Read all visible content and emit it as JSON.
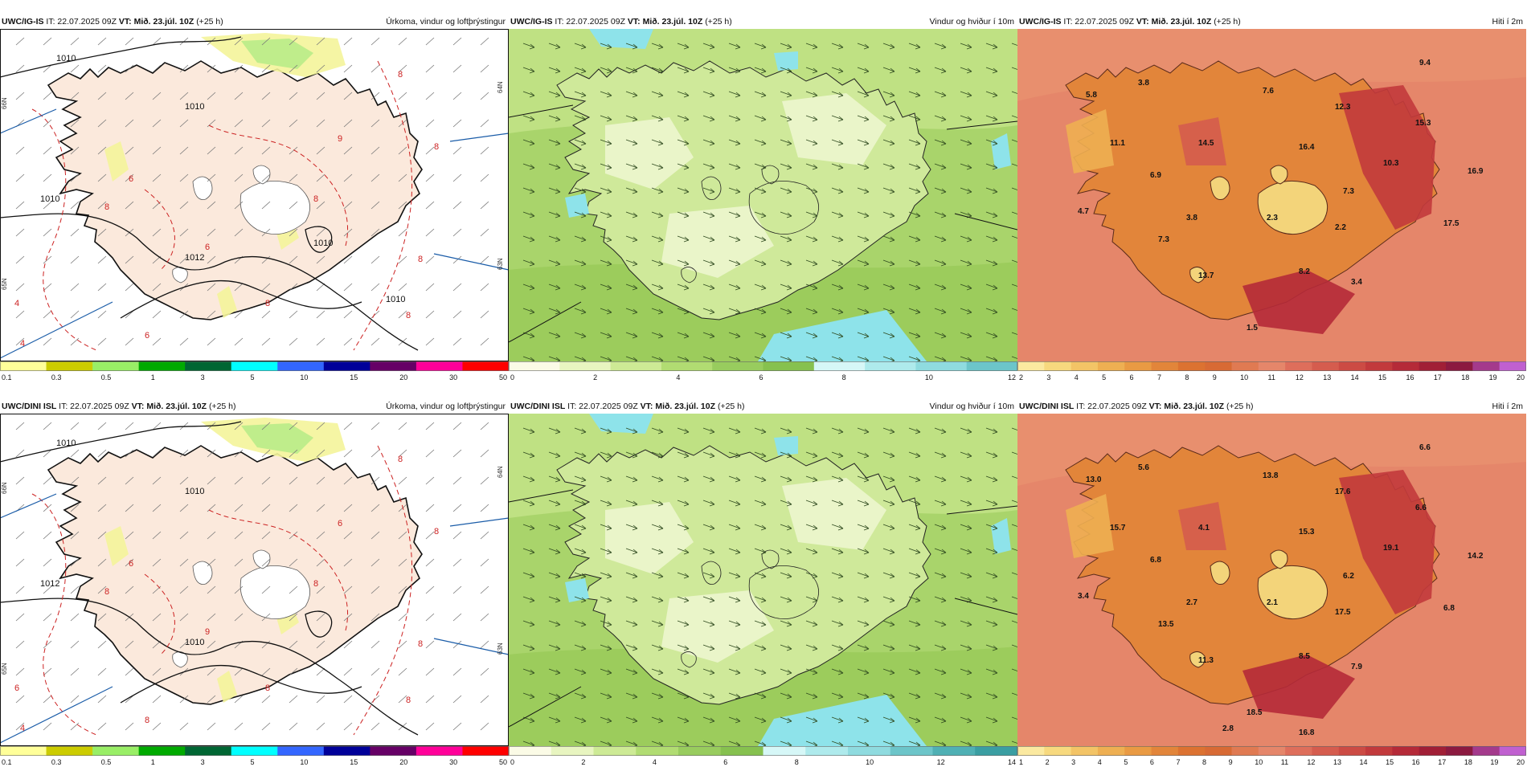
{
  "panels": [
    {
      "source": "UWC/IG-IS",
      "it": " IT: 22.07.2025 09Z ",
      "vt_label": "VT:",
      "vt_value": " Mið. 23.júl. 10Z ",
      "lead": "(+25 h)",
      "title": "Úrkoma, vindur og loftþrýstingur",
      "type": "precip",
      "colorbar": {
        "colors": [
          "#ffff99",
          "#cccc00",
          "#99ee66",
          "#00aa00",
          "#006633",
          "#00ffff",
          "#3366ff",
          "#000099",
          "#660066",
          "#ff0099",
          "#ff0000"
        ],
        "labels": [
          "0.1",
          "0.3",
          "0.5",
          "1",
          "3",
          "5",
          "10",
          "15",
          "20",
          "30",
          "50"
        ]
      },
      "isobar_labels": [
        "1010",
        "1010",
        "1010",
        "1012",
        "1010",
        "1010"
      ],
      "contour_labels": [
        "8",
        "8",
        "8",
        "6",
        "8",
        "6",
        "4",
        "8",
        "6",
        "8",
        "8",
        "4",
        "9"
      ],
      "lat_labels": [
        "66N",
        "65N",
        "64N",
        "63N"
      ]
    },
    {
      "source": "UWC/IG-IS",
      "it": " IT: 22.07.2025 09Z ",
      "vt_label": "VT:",
      "vt_value": " Mið. 23.júl. 10Z ",
      "lead": "(+25 h)",
      "title": "Vindur og hviður í 10m",
      "type": "wind",
      "colorbar": {
        "colors": [
          "#fbfbe6",
          "#e8f5c0",
          "#cdea95",
          "#b1dc72",
          "#98cc5e",
          "#86c14f",
          "#d6f7f7",
          "#aeeaec",
          "#8fdbdf",
          "#6cc5c9"
        ],
        "labels": [
          "0",
          "2",
          "4",
          "6",
          "8",
          "10",
          "12"
        ]
      }
    },
    {
      "source": "UWC/IG-IS",
      "it": " IT: 22.07.2025 09Z ",
      "vt_label": "VT:",
      "vt_value": " Mið. 23.júl. 10Z ",
      "lead": "(+25 h)",
      "title": "Hiti í 2m",
      "type": "temp",
      "colorbar": {
        "colors": [
          "#fbe9a0",
          "#f7d97e",
          "#f3c466",
          "#eeaf52",
          "#e99a43",
          "#e2853a",
          "#dc7231",
          "#d86a34",
          "#e07a52",
          "#e5866a",
          "#de6e5b",
          "#d55c4e",
          "#cc4b44",
          "#c23a3c",
          "#b52a38",
          "#a11f36",
          "#8c1a40",
          "#a43a8c",
          "#c060d0"
        ],
        "labels": [
          "2",
          "3",
          "4",
          "5",
          "6",
          "7",
          "8",
          "9",
          "10",
          "11",
          "12",
          "13",
          "14",
          "15",
          "16",
          "17",
          "18",
          "19",
          "20"
        ]
      },
      "value_labels": [
        "9.4",
        "5.8",
        "3.8",
        "7.6",
        "12.3",
        "15.3",
        "11.1",
        "14.5",
        "16.4",
        "10.3",
        "16.9",
        "6.9",
        "7.3",
        "4.7",
        "3.8",
        "2.3",
        "2.2",
        "17.5",
        "7.3",
        "13.7",
        "8.2",
        "3.4",
        "1.5"
      ]
    },
    {
      "source": "UWC/DINI ISL",
      "it": " IT: 22.07.2025 09Z ",
      "vt_label": "VT:",
      "vt_value": " Mið. 23.júl. 10Z ",
      "lead": "(+25 h)",
      "title": "Úrkoma, vindur og loftþrýstingur",
      "type": "precip",
      "colorbar": {
        "colors": [
          "#ffff99",
          "#cccc00",
          "#99ee66",
          "#00aa00",
          "#006633",
          "#00ffff",
          "#3366ff",
          "#000099",
          "#660066",
          "#ff0099",
          "#ff0000"
        ],
        "labels": [
          "0.1",
          "0.3",
          "0.5",
          "1",
          "3",
          "5",
          "10",
          "15",
          "20",
          "30",
          "50"
        ]
      },
      "isobar_labels": [
        "1010",
        "1010",
        "1012",
        "1010"
      ],
      "contour_labels": [
        "8",
        "8",
        "8",
        "9",
        "8",
        "8",
        "6",
        "8",
        "6",
        "8",
        "8",
        "4",
        "6"
      ],
      "lat_labels": [
        "66N",
        "65N",
        "64N",
        "63N"
      ]
    },
    {
      "source": "UWC/DINI ISL",
      "it": " IT: 22.07.2025 09Z ",
      "vt_label": "VT:",
      "vt_value": " Mið. 23.júl. 10Z ",
      "lead": "(+25 h)",
      "title": "Vindur og hviður í 10m",
      "type": "wind",
      "colorbar": {
        "colors": [
          "#fbfbe6",
          "#e8f5c0",
          "#cdea95",
          "#b1dc72",
          "#98cc5e",
          "#86c14f",
          "#d6f7f7",
          "#aeeaec",
          "#8fdbdf",
          "#6cc5c9",
          "#4fb0b4",
          "#3a9ea2"
        ],
        "labels": [
          "0",
          "2",
          "4",
          "6",
          "8",
          "10",
          "12",
          "14"
        ]
      }
    },
    {
      "source": "UWC/DINI ISL",
      "it": " IT: 22.07.2025 09Z ",
      "vt_label": "VT:",
      "vt_value": " Mið. 23.júl. 10Z ",
      "lead": "(+25 h)",
      "title": "Hiti í 2m",
      "type": "temp",
      "colorbar": {
        "colors": [
          "#fbe9a0",
          "#f7d97e",
          "#f3c466",
          "#eeaf52",
          "#e99a43",
          "#e2853a",
          "#dc7231",
          "#d86a34",
          "#e07a52",
          "#e5866a",
          "#de6e5b",
          "#d55c4e",
          "#cc4b44",
          "#c23a3c",
          "#b52a38",
          "#a11f36",
          "#8c1a40",
          "#a43a8c",
          "#c060d0"
        ],
        "labels": [
          "1",
          "2",
          "3",
          "4",
          "5",
          "6",
          "7",
          "8",
          "9",
          "10",
          "11",
          "12",
          "13",
          "14",
          "15",
          "16",
          "17",
          "18",
          "19",
          "20"
        ]
      },
      "value_labels": [
        "6.6",
        "13.0",
        "5.6",
        "13.8",
        "17.6",
        "6.6",
        "15.7",
        "4.1",
        "15.3",
        "19.1",
        "14.2",
        "6.8",
        "6.2",
        "3.4",
        "2.7",
        "2.1",
        "17.5",
        "6.8",
        "13.5",
        "11.3",
        "8.5",
        "7.9",
        "18.5",
        "2.8",
        "16.8"
      ]
    }
  ]
}
